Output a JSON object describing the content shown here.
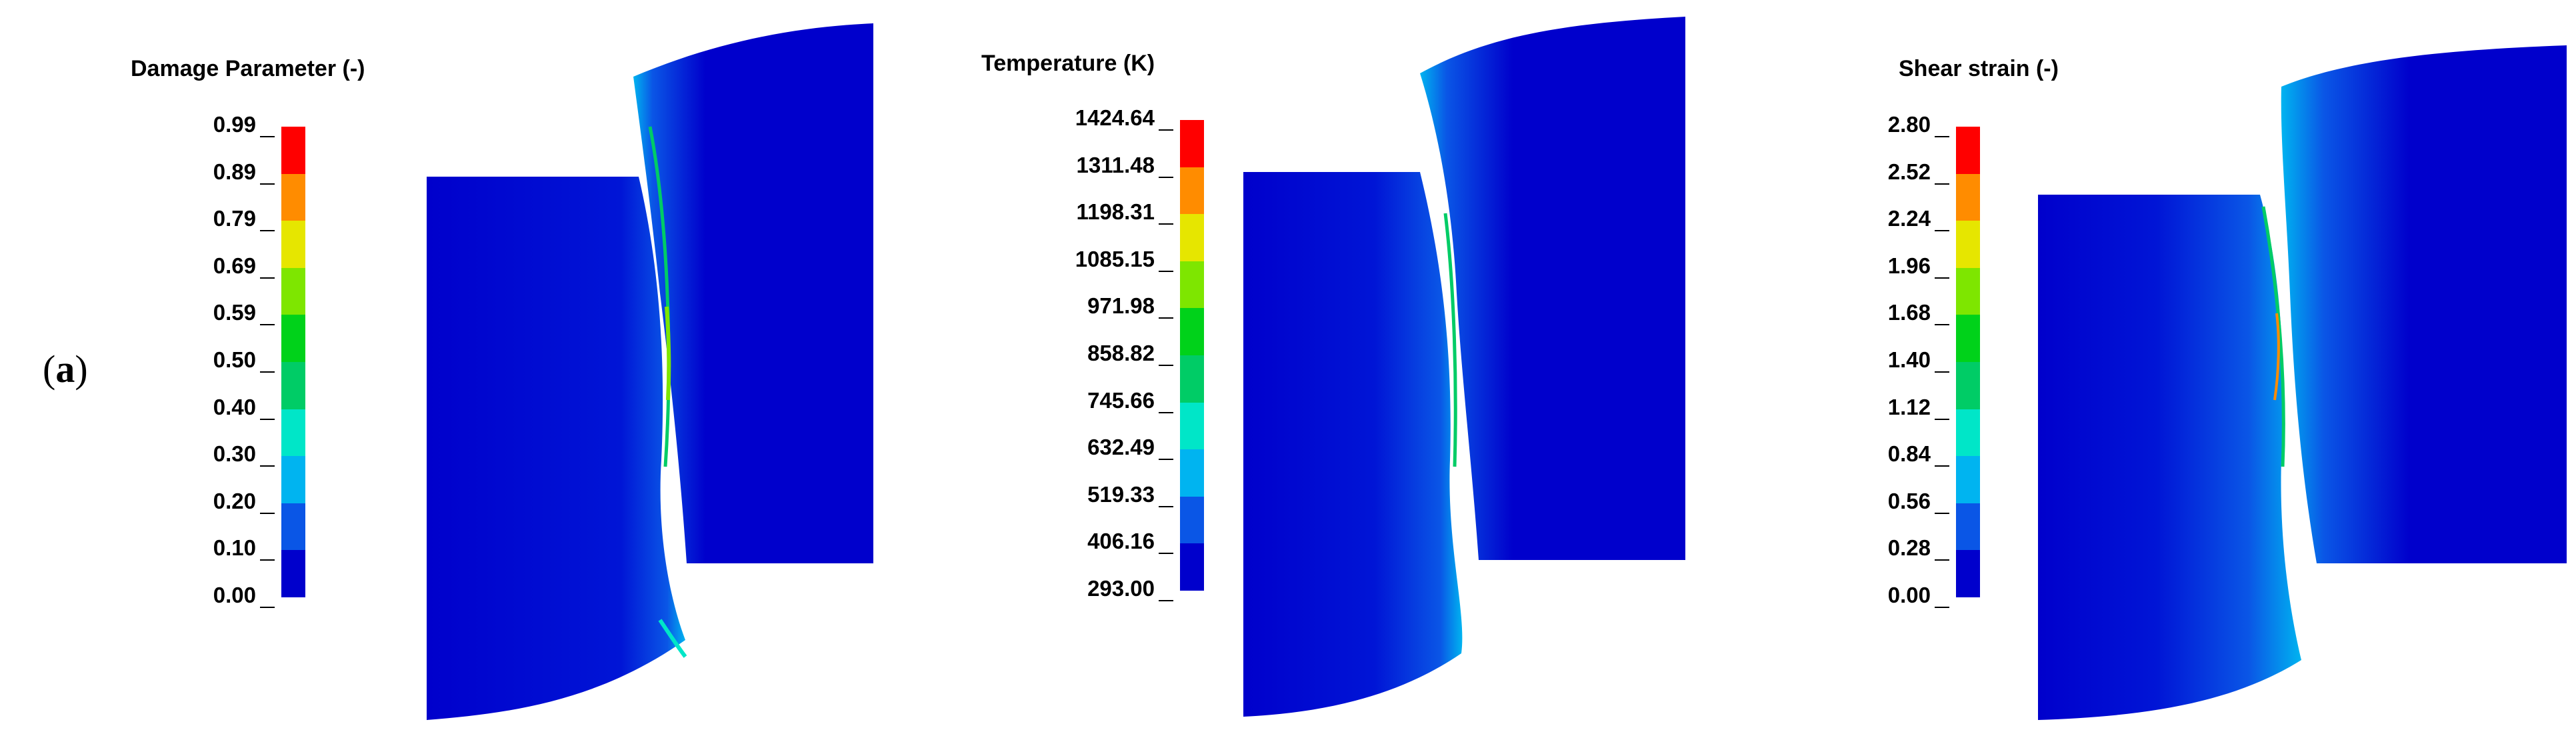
{
  "panel_label": {
    "open": "(",
    "letter": "a",
    "close": ")"
  },
  "colormap": [
    "#0000cc",
    "#0a56e6",
    "#00b4f0",
    "#00e6c8",
    "#00cc66",
    "#00d21a",
    "#7ee600",
    "#e6e600",
    "#ff8c00",
    "#ff0000"
  ],
  "figures": [
    {
      "legend_title": "Damage Parameter (-)",
      "ticks": [
        "0.99",
        "0.89",
        "0.79",
        "0.69",
        "0.59",
        "0.50",
        "0.40",
        "0.30",
        "0.20",
        "0.10",
        "0.00"
      ]
    },
    {
      "legend_title": "Temperature (K)",
      "ticks": [
        "1424.64",
        "1311.48",
        "1198.31",
        "1085.15",
        "971.98",
        "858.82",
        "745.66",
        "632.49",
        "519.33",
        "406.16",
        "293.00"
      ]
    },
    {
      "legend_title": "Shear strain (-)",
      "ticks": [
        "2.80",
        "2.52",
        "2.24",
        "1.96",
        "1.68",
        "1.40",
        "1.12",
        "0.84",
        "0.56",
        "0.28",
        "0.00"
      ]
    }
  ]
}
